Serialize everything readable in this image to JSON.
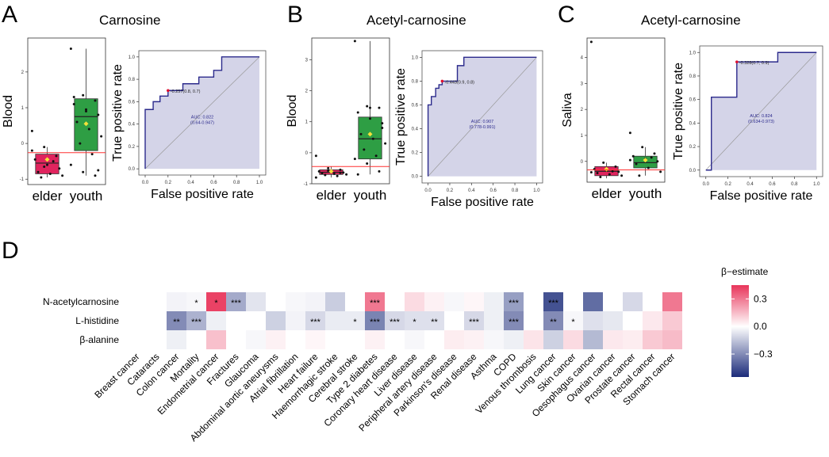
{
  "panels": {
    "A": {
      "label": "A",
      "title": "Carnosine"
    },
    "B": {
      "label": "B",
      "title": "Acetyl-carnosine"
    },
    "C": {
      "label": "C",
      "title": "Acetyl-carnosine"
    },
    "D": {
      "label": "D"
    }
  },
  "chart_data": [
    {
      "id": "A-box",
      "type": "box",
      "ylabel": "Blood",
      "categories": [
        "elder",
        "youth"
      ],
      "ylim": [
        -1.15,
        2.95
      ],
      "yticks": [
        -1,
        0,
        1,
        2
      ],
      "ytick_labels": [
        "-1",
        "0",
        "1",
        "2"
      ],
      "cutoff": -0.257,
      "boxes": [
        {
          "name": "elder",
          "q1": -0.85,
          "median": -0.55,
          "q3": -0.3,
          "low": -0.95,
          "high": -0.1,
          "mean": -0.45,
          "color": "#e0245e"
        },
        {
          "name": "youth",
          "q1": -0.2,
          "median": 0.75,
          "q3": 1.25,
          "low": -0.9,
          "high": 2.65,
          "mean": 0.55,
          "color": "#2e9e44"
        }
      ],
      "points": [
        {
          "group": "elder",
          "values": [
            0.35,
            -0.1,
            -0.35,
            -0.45,
            -0.6,
            -0.7,
            -0.8,
            -0.85,
            -0.9,
            -0.95,
            -0.5,
            -0.2,
            -0.65
          ]
        },
        {
          "group": "youth",
          "values": [
            2.65,
            1.35,
            1.2,
            1.1,
            0.9,
            0.8,
            0.6,
            0.4,
            0.2,
            0.0,
            -0.3,
            -0.6,
            -0.8,
            -0.9,
            1.3,
            0.95,
            -0.75
          ]
        }
      ]
    },
    {
      "id": "A-roc",
      "type": "line",
      "xlabel": "False positive rate",
      "ylabel": "True positive rate",
      "xlim": [
        0,
        1
      ],
      "ylim": [
        0,
        1
      ],
      "ticks": [
        0,
        0.2,
        0.4,
        0.6,
        0.8,
        1
      ],
      "tick_labels": [
        "0.0",
        "0.2",
        "0.4",
        "0.6",
        "0.8",
        "1.0"
      ],
      "auc_label": "AUC: 0.822",
      "ci_label": "(0.64-0.947)",
      "cutoff_label": "-0.257(0.8, 0.7)",
      "cutoff_point": {
        "fpr": 0.2,
        "tpr": 0.7
      },
      "fpr": [
        0,
        0,
        0.07,
        0.07,
        0.13,
        0.13,
        0.2,
        0.2,
        0.33,
        0.33,
        0.47,
        0.47,
        0.6,
        0.6,
        0.67,
        0.67,
        1
      ],
      "tpr": [
        0,
        0.53,
        0.53,
        0.6,
        0.6,
        0.65,
        0.65,
        0.7,
        0.7,
        0.76,
        0.76,
        0.82,
        0.82,
        0.88,
        0.88,
        1,
        1
      ]
    },
    {
      "id": "B-box",
      "type": "box",
      "ylabel": "Blood",
      "categories": [
        "elder",
        "youth"
      ],
      "ylim": [
        -1.0,
        3.7
      ],
      "yticks": [
        -1,
        0,
        1,
        2,
        3
      ],
      "ytick_labels": [
        "-1",
        "0",
        "1",
        "2",
        "3"
      ],
      "cutoff": -0.443,
      "boxes": [
        {
          "name": "elder",
          "q1": -0.7,
          "median": -0.63,
          "q3": -0.55,
          "low": -0.8,
          "high": -0.45,
          "mean": -0.6,
          "color": "#e0245e"
        },
        {
          "name": "youth",
          "q1": -0.2,
          "median": 0.45,
          "q3": 1.15,
          "low": -0.7,
          "high": 3.6,
          "mean": 0.6,
          "color": "#2e9e44"
        }
      ],
      "points": [
        {
          "group": "elder",
          "values": [
            -0.1,
            -0.5,
            -0.55,
            -0.6,
            -0.62,
            -0.64,
            -0.66,
            -0.68,
            -0.7,
            -0.72,
            -0.75,
            -0.8,
            -0.58,
            -0.65
          ]
        },
        {
          "group": "youth",
          "values": [
            3.6,
            1.5,
            1.45,
            1.3,
            1.1,
            0.8,
            0.6,
            0.45,
            0.3,
            0.1,
            -0.1,
            -0.2,
            -0.35,
            -0.6,
            -0.7,
            1.45,
            0.95
          ]
        }
      ]
    },
    {
      "id": "B-roc",
      "type": "line",
      "xlabel": "False positive rate",
      "ylabel": "True positive rate",
      "xlim": [
        0,
        1
      ],
      "ylim": [
        0,
        1
      ],
      "ticks": [
        0,
        0.2,
        0.4,
        0.6,
        0.8,
        1
      ],
      "tick_labels": [
        "0.0",
        "0.2",
        "0.4",
        "0.6",
        "0.8",
        "1.0"
      ],
      "auc_label": "AUC: 0.907",
      "ci_label": "(0.778-0.991)",
      "cutoff_label": "-0.443(0.9, 0.8)",
      "cutoff_point": {
        "fpr": 0.13,
        "tpr": 0.8
      },
      "fpr": [
        0,
        0,
        0.03,
        0.03,
        0.07,
        0.07,
        0.1,
        0.1,
        0.13,
        0.13,
        0.27,
        0.27,
        0.33,
        0.33,
        1
      ],
      "tpr": [
        0,
        0.6,
        0.6,
        0.67,
        0.67,
        0.74,
        0.74,
        0.77,
        0.77,
        0.8,
        0.8,
        0.93,
        0.93,
        1,
        1
      ]
    },
    {
      "id": "C-box",
      "type": "box",
      "ylabel": "Saliva",
      "categories": [
        "elder",
        "youth"
      ],
      "ylim": [
        -0.8,
        4.75
      ],
      "yticks": [
        0,
        1,
        2,
        3,
        4
      ],
      "ytick_labels": [
        "0",
        "1",
        "2",
        "3",
        "4"
      ],
      "cutoff": -0.328,
      "boxes": [
        {
          "name": "elder",
          "q1": -0.55,
          "median": -0.38,
          "q3": -0.2,
          "low": -0.65,
          "high": -0.05,
          "mean": -0.3,
          "color": "#e0245e"
        },
        {
          "name": "youth",
          "q1": -0.25,
          "median": -0.05,
          "q3": 0.2,
          "low": -0.55,
          "high": 0.55,
          "mean": 0.05,
          "color": "#2e9e44"
        }
      ],
      "points": [
        {
          "group": "elder",
          "values": [
            4.6,
            -0.05,
            -0.2,
            -0.3,
            -0.35,
            -0.4,
            -0.45,
            -0.5,
            -0.55,
            -0.6,
            -0.38,
            -0.42
          ]
        },
        {
          "group": "youth",
          "values": [
            1.1,
            0.55,
            0.3,
            0.2,
            0.1,
            0.0,
            -0.1,
            -0.25,
            -0.4,
            -0.55,
            0.15,
            0.05
          ]
        }
      ]
    },
    {
      "id": "C-roc",
      "type": "line",
      "xlabel": "False positive rate",
      "ylabel": "True positive rate",
      "xlim": [
        0,
        1
      ],
      "ylim": [
        0,
        1
      ],
      "ticks": [
        0,
        0.2,
        0.4,
        0.6,
        0.8,
        1
      ],
      "tick_labels": [
        "0.0",
        "0.2",
        "0.4",
        "0.6",
        "0.8",
        "1.0"
      ],
      "auc_label": "AUC: 0.824",
      "ci_label": "(0.634-0.973)",
      "cutoff_label": "-0.328(0.7, 0.9)",
      "cutoff_point": {
        "fpr": 0.28,
        "tpr": 0.92
      },
      "fpr": [
        0,
        0.05,
        0.05,
        0.28,
        0.28,
        0.65,
        0.65,
        1
      ],
      "tpr": [
        0,
        0,
        0.62,
        0.62,
        0.92,
        0.92,
        1,
        1
      ]
    },
    {
      "id": "D-heatmap",
      "type": "heatmap",
      "rows": [
        "N-acetylcarnosine",
        "L-histidine",
        "β-alanine"
      ],
      "columns": [
        "Breast cancer",
        "Cataracts",
        "Colon cancer",
        "Mortality",
        "Endometrial cancer",
        "Fractures",
        "Glaucoma",
        "Abdominal aortic aneurysms",
        "Atrial fibrillation",
        "Heart failure",
        "Haemorrhagic stroke",
        "Cerebral stroke",
        "Type 2 diabetes",
        "Coronary heart disease",
        "Liver disease",
        "Peripheral artery disease",
        "Parkinson's disease",
        "Renal disease",
        "Asthma",
        "COPD",
        "Venous thrombosis",
        "Lung cancer",
        "Skin cancer",
        "Oesophagus cancer",
        "Ovarian cancer",
        "Prostate cancer",
        "Rectal cancer",
        "Stomach cancer"
      ],
      "values": [
        [
          0.0,
          0.0,
          -0.03,
          -0.02,
          0.42,
          -0.22,
          -0.07,
          0.0,
          -0.02,
          -0.03,
          -0.13,
          0.0,
          0.3,
          0.0,
          0.08,
          0.03,
          -0.02,
          0.02,
          -0.04,
          -0.25,
          0.0,
          -0.45,
          0.0,
          -0.38,
          0.0,
          -0.1,
          0.0,
          0.3
        ],
        [
          0.0,
          0.0,
          -0.3,
          -0.2,
          -0.04,
          0.0,
          0.0,
          -0.12,
          -0.03,
          -0.1,
          -0.05,
          -0.05,
          -0.32,
          -0.1,
          -0.08,
          -0.08,
          0.0,
          -0.1,
          -0.04,
          -0.3,
          0.0,
          -0.3,
          -0.02,
          -0.08,
          -0.06,
          0.0,
          0.05,
          0.12
        ],
        [
          0.0,
          0.0,
          -0.04,
          0.0,
          0.14,
          0.0,
          -0.02,
          0.03,
          0.0,
          0.02,
          0.0,
          0.0,
          0.03,
          0.0,
          -0.02,
          0.0,
          0.04,
          0.03,
          -0.02,
          -0.04,
          0.06,
          -0.12,
          0.08,
          -0.18,
          0.05,
          0.04,
          0.12,
          0.15
        ]
      ],
      "stars": [
        [
          "",
          "",
          "",
          "*",
          "*",
          "***",
          "",
          "",
          "",
          "",
          "",
          "",
          "***",
          "",
          "",
          "",
          "",
          "",
          "",
          "***",
          "",
          "***",
          "",
          "",
          "",
          "",
          "",
          ""
        ],
        [
          "",
          "",
          "**",
          "***",
          "",
          "",
          "",
          "",
          "",
          "***",
          "",
          "*",
          "***",
          "***",
          "*",
          "**",
          "",
          "***",
          "",
          "***",
          "",
          "**",
          "*",
          "",
          "",
          "",
          "",
          ""
        ],
        [
          "",
          "",
          "",
          "",
          "",
          "",
          "",
          "",
          "",
          "",
          "",
          "",
          "",
          "",
          "",
          "",
          "",
          "",
          "",
          "",
          "",
          "",
          "",
          "",
          "",
          "",
          "",
          ""
        ]
      ],
      "legend": {
        "title": "β−estimate",
        "ticks": [
          0.3,
          0.0,
          -0.3
        ],
        "tick_labels": [
          "0.3",
          "0.0",
          "−0.3"
        ],
        "range": [
          -0.55,
          0.45
        ],
        "high_color": "#e8345a",
        "mid_color": "#ffffff",
        "low_color": "#1b2b7a"
      }
    }
  ],
  "colors": {
    "roc_line": "#2b2a8c",
    "roc_fill": "#d4d4e8",
    "cutoff_line": "#ff3030",
    "cutoff_point": "#e0102f",
    "mean_marker": "#f5e23a",
    "text": "#000000"
  }
}
